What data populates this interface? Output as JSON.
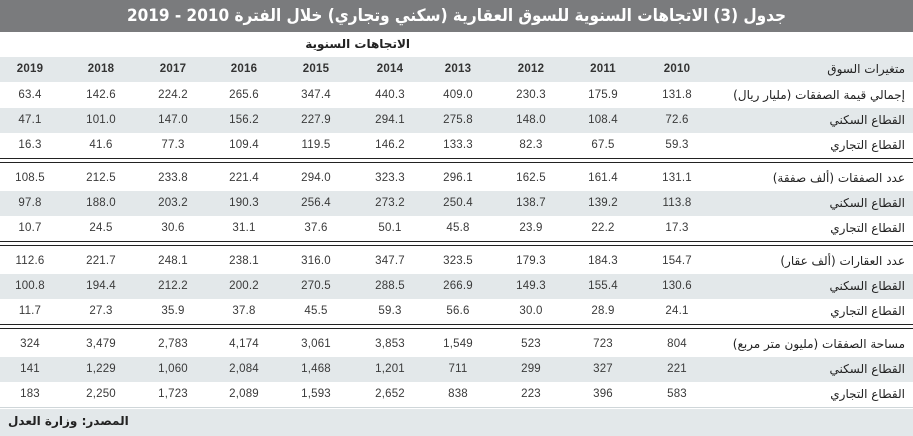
{
  "title": "جدول (3) الاتجاهات السنوية للسوق العقارية (سكني وتجاري) خلال الفترة 2010 - 2019",
  "subheader": "الاتجاهات السنوية",
  "header": {
    "label": "متغيرات السوق",
    "years": [
      "2010",
      "2011",
      "2012",
      "2013",
      "2014",
      "2015",
      "2016",
      "2017",
      "2018",
      "2019"
    ]
  },
  "groups": [
    {
      "rows": [
        {
          "label": "إجمالي قيمة الصفقات (مليار ريال)",
          "values": [
            "131.8",
            "175.9",
            "230.3",
            "409.0",
            "440.3",
            "347.4",
            "265.6",
            "224.2",
            "142.6",
            "63.4"
          ]
        },
        {
          "label": "القطاع السكني",
          "values": [
            "72.6",
            "108.4",
            "148.0",
            "275.8",
            "294.1",
            "227.9",
            "156.2",
            "147.0",
            "101.0",
            "47.1"
          ]
        },
        {
          "label": "القطاع التجاري",
          "values": [
            "59.3",
            "67.5",
            "82.3",
            "133.3",
            "146.2",
            "119.5",
            "109.4",
            "77.3",
            "41.6",
            "16.3"
          ]
        }
      ]
    },
    {
      "rows": [
        {
          "label": "عدد الصفقات (ألف صفقة)",
          "values": [
            "131.1",
            "161.4",
            "162.5",
            "296.1",
            "323.3",
            "294.0",
            "221.4",
            "233.8",
            "212.5",
            "108.5"
          ]
        },
        {
          "label": "القطاع السكني",
          "values": [
            "113.8",
            "139.2",
            "138.7",
            "250.4",
            "273.2",
            "256.4",
            "190.3",
            "203.2",
            "188.0",
            "97.8"
          ]
        },
        {
          "label": "القطاع التجاري",
          "values": [
            "17.3",
            "22.2",
            "23.9",
            "45.8",
            "50.1",
            "37.6",
            "31.1",
            "30.6",
            "24.5",
            "10.7"
          ]
        }
      ]
    },
    {
      "rows": [
        {
          "label": "عدد العقارات (ألف عقار)",
          "values": [
            "154.7",
            "184.3",
            "179.3",
            "323.5",
            "347.7",
            "316.0",
            "238.1",
            "248.1",
            "221.7",
            "112.6"
          ]
        },
        {
          "label": "القطاع السكني",
          "values": [
            "130.6",
            "155.4",
            "149.3",
            "266.9",
            "288.5",
            "270.5",
            "200.2",
            "212.2",
            "194.4",
            "100.8"
          ]
        },
        {
          "label": "القطاع التجاري",
          "values": [
            "24.1",
            "28.9",
            "30.0",
            "56.6",
            "59.3",
            "45.5",
            "37.8",
            "35.9",
            "27.3",
            "11.7"
          ]
        }
      ]
    },
    {
      "rows": [
        {
          "label": "مساحة الصفقات (مليون متر مربع)",
          "values": [
            "804",
            "723",
            "523",
            "1,549",
            "3,853",
            "3,061",
            "4,174",
            "2,783",
            "3,479",
            "324"
          ]
        },
        {
          "label": "القطاع السكني",
          "values": [
            "221",
            "327",
            "299",
            "711",
            "1,201",
            "1,468",
            "2,084",
            "1,060",
            "1,229",
            "141"
          ]
        },
        {
          "label": "القطاع التجاري",
          "values": [
            "583",
            "396",
            "223",
            "838",
            "2,652",
            "1,593",
            "2,089",
            "1,723",
            "2,250",
            "183"
          ]
        }
      ]
    }
  ],
  "footer": "المصدر: وزارة العدل",
  "colors": {
    "title_bg": "#7a7b7d",
    "row_shade": "#e3e8ea",
    "text": "#3a3a3a"
  }
}
